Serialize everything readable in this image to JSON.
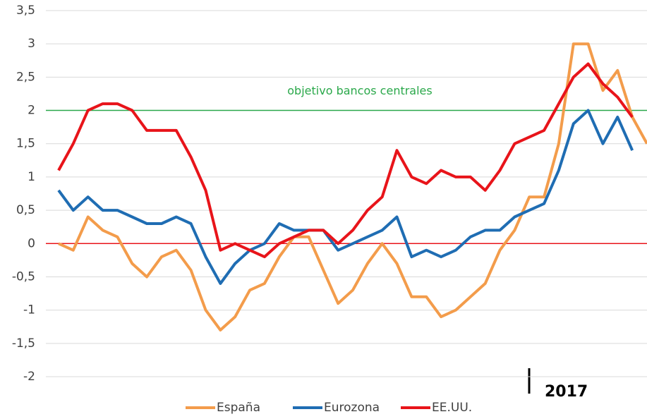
{
  "chart_data": {
    "type": "line",
    "categories": [
      null,
      null,
      null,
      null,
      null,
      null,
      null,
      null,
      null,
      null,
      null,
      null,
      null,
      null,
      null,
      null,
      null,
      null,
      null,
      null,
      null,
      null,
      null,
      null,
      null,
      null,
      null,
      null,
      null,
      null,
      null,
      null,
      null,
      null,
      null,
      null,
      null,
      null,
      null,
      null,
      null
    ],
    "series": [
      {
        "name": "España",
        "color": "#f39c4b",
        "values": [
          0,
          -0.1,
          0.4,
          0.2,
          0.1,
          -0.3,
          -0.5,
          -0.2,
          -0.1,
          -0.4,
          -1.0,
          -1.3,
          -1.1,
          -0.7,
          -0.6,
          -0.2,
          0.1,
          0.1,
          -0.4,
          -0.9,
          -0.7,
          -0.3,
          0,
          -0.3,
          -0.8,
          -0.8,
          -1.1,
          -1.0,
          -0.8,
          -0.6,
          -0.1,
          0.2,
          0.7,
          0.7,
          1.5,
          3.0,
          3.0,
          2.3,
          2.6,
          1.9,
          1.5
        ]
      },
      {
        "name": "Eurozona",
        "color": "#1f6db3",
        "values": [
          0.8,
          0.5,
          0.7,
          0.5,
          0.5,
          0.4,
          0.3,
          0.3,
          0.4,
          0.3,
          -0.2,
          -0.6,
          -0.3,
          -0.1,
          0,
          0.3,
          0.2,
          0.2,
          0.2,
          -0.1,
          0,
          0.1,
          0.2,
          0.4,
          -0.2,
          -0.1,
          -0.2,
          -0.1,
          0.1,
          0.2,
          0.2,
          0.4,
          0.5,
          0.6,
          1.1,
          1.8,
          2.0,
          1.5,
          1.9,
          1.4,
          null
        ]
      },
      {
        "name": "EE.UU.",
        "color": "#e8141a",
        "values": [
          1.1,
          1.5,
          2.0,
          2.1,
          2.1,
          2.0,
          1.7,
          1.7,
          1.7,
          1.3,
          0.8,
          -0.1,
          0,
          -0.1,
          -0.2,
          0,
          0.1,
          0.2,
          0.2,
          0,
          0.2,
          0.5,
          0.7,
          1.4,
          1.0,
          0.9,
          1.1,
          1.0,
          1.0,
          0.8,
          1.1,
          1.5,
          1.6,
          1.7,
          2.1,
          2.5,
          2.7,
          2.4,
          2.2,
          1.9,
          null
        ]
      }
    ],
    "ylim": [
      -2,
      3.5
    ],
    "yticks": [
      {
        "value": -2,
        "label": "-2"
      },
      {
        "value": -1.5,
        "label": "-1,5"
      },
      {
        "value": -1,
        "label": "-1"
      },
      {
        "value": -0.5,
        "label": "-0,5"
      },
      {
        "value": 0,
        "label": "0"
      },
      {
        "value": 0.5,
        "label": "0,5"
      },
      {
        "value": 1,
        "label": "1"
      },
      {
        "value": 1.5,
        "label": "1,5"
      },
      {
        "value": 2,
        "label": "2"
      },
      {
        "value": 2.5,
        "label": "2,5"
      },
      {
        "value": 3,
        "label": "3"
      },
      {
        "value": 3.5,
        "label": "3,5"
      }
    ],
    "grid": true,
    "reference_lines": [
      {
        "value": 2,
        "color": "#2aa84a",
        "label": "objetivo bancos centrales"
      },
      {
        "value": 0,
        "color": "#e8141a"
      }
    ],
    "annotations": [
      "2017"
    ],
    "legend": "bottom"
  }
}
